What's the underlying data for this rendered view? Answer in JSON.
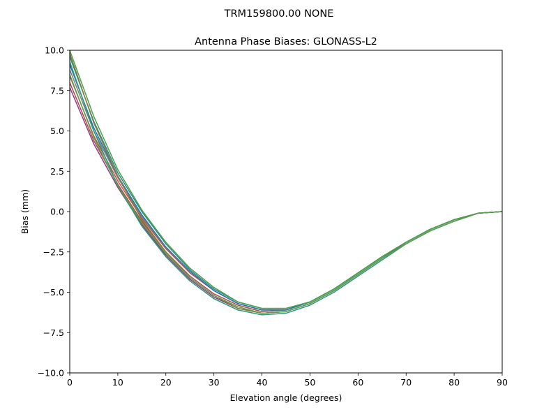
{
  "chart_data": {
    "type": "line",
    "suptitle": "TRM159800.00    NONE",
    "title": "Antenna Phase Biases: GLONASS-L2",
    "xlabel": "Elevation angle (degrees)",
    "ylabel": "Bias (mm)",
    "xlim": [
      0,
      90
    ],
    "ylim": [
      -10,
      10
    ],
    "xticks": [
      0,
      10,
      20,
      30,
      40,
      50,
      60,
      70,
      80,
      90
    ],
    "xtick_labels": [
      "0",
      "10",
      "20",
      "30",
      "40",
      "50",
      "60",
      "70",
      "80",
      "90"
    ],
    "yticks": [
      -10,
      -7.5,
      -5,
      -2.5,
      0,
      2.5,
      5,
      7.5,
      10
    ],
    "ytick_labels": [
      "−10.0",
      "−7.5",
      "−5.0",
      "−2.5",
      "0.0",
      "2.5",
      "5.0",
      "7.5",
      "10.0"
    ],
    "grid": false,
    "legend": "none",
    "x": [
      0,
      5,
      10,
      15,
      20,
      25,
      30,
      35,
      40,
      45,
      50,
      55,
      60,
      65,
      70,
      75,
      80,
      85,
      90
    ],
    "series": [
      {
        "color": "#8c3a8c",
        "values": [
          7.7,
          4.2,
          1.5,
          -0.8,
          -2.7,
          -4.2,
          -5.3,
          -6.0,
          -6.3,
          -6.2,
          -5.7,
          -4.9,
          -3.9,
          -2.9,
          -1.9,
          -1.1,
          -0.5,
          -0.1,
          0.0
        ]
      },
      {
        "color": "#b04a4a",
        "values": [
          8.0,
          4.4,
          1.7,
          -0.6,
          -2.5,
          -4.0,
          -5.1,
          -5.8,
          -6.2,
          -6.1,
          -5.6,
          -4.8,
          -3.8,
          -2.8,
          -1.9,
          -1.1,
          -0.5,
          -0.1,
          0.0
        ]
      },
      {
        "color": "#c0504d",
        "values": [
          8.4,
          4.7,
          1.9,
          -0.4,
          -2.3,
          -3.8,
          -4.9,
          -5.7,
          -6.1,
          -6.1,
          -5.6,
          -4.8,
          -3.8,
          -2.8,
          -1.9,
          -1.1,
          -0.5,
          -0.1,
          0.0
        ]
      },
      {
        "color": "#7f7f7f",
        "values": [
          8.8,
          5.0,
          2.1,
          -0.3,
          -2.2,
          -3.7,
          -4.9,
          -5.7,
          -6.1,
          -6.1,
          -5.6,
          -4.8,
          -3.8,
          -2.8,
          -1.9,
          -1.1,
          -0.5,
          -0.1,
          0.0
        ]
      },
      {
        "color": "#1f77b4",
        "values": [
          9.1,
          5.2,
          2.2,
          -0.2,
          -2.2,
          -3.7,
          -4.9,
          -5.7,
          -6.1,
          -6.1,
          -5.6,
          -4.8,
          -3.8,
          -2.8,
          -1.9,
          -1.1,
          -0.5,
          -0.1,
          0.0
        ]
      },
      {
        "color": "#2a8a8a",
        "values": [
          9.6,
          5.6,
          2.4,
          0.0,
          -2.0,
          -3.6,
          -4.8,
          -5.6,
          -6.0,
          -6.0,
          -5.6,
          -4.8,
          -3.8,
          -2.8,
          -1.9,
          -1.1,
          -0.5,
          -0.1,
          0.0
        ]
      },
      {
        "color": "#4aa14a",
        "values": [
          10.0,
          5.9,
          2.6,
          0.1,
          -1.9,
          -3.5,
          -4.7,
          -5.6,
          -6.0,
          -6.0,
          -5.6,
          -4.8,
          -3.8,
          -2.8,
          -1.9,
          -1.1,
          -0.5,
          -0.1,
          0.0
        ]
      },
      {
        "color": "#2a9a7a",
        "values": [
          9.3,
          5.0,
          1.6,
          -0.9,
          -2.8,
          -4.3,
          -5.4,
          -6.1,
          -6.4,
          -6.3,
          -5.8,
          -5.0,
          -4.0,
          -3.0,
          -2.0,
          -1.2,
          -0.6,
          -0.1,
          0.0
        ]
      },
      {
        "color": "#8a7a3a",
        "values": [
          9.8,
          5.5,
          2.2,
          -0.5,
          -2.5,
          -4.1,
          -5.2,
          -6.0,
          -6.3,
          -6.2,
          -5.7,
          -4.9,
          -3.9,
          -2.9,
          -2.0,
          -1.2,
          -0.6,
          -0.1,
          0.0
        ]
      },
      {
        "color": "#59a14f",
        "values": [
          8.5,
          4.6,
          1.6,
          -0.7,
          -2.6,
          -4.1,
          -5.2,
          -5.9,
          -6.3,
          -6.2,
          -5.7,
          -4.9,
          -3.9,
          -2.9,
          -2.0,
          -1.2,
          -0.6,
          -0.1,
          0.0
        ]
      }
    ]
  }
}
